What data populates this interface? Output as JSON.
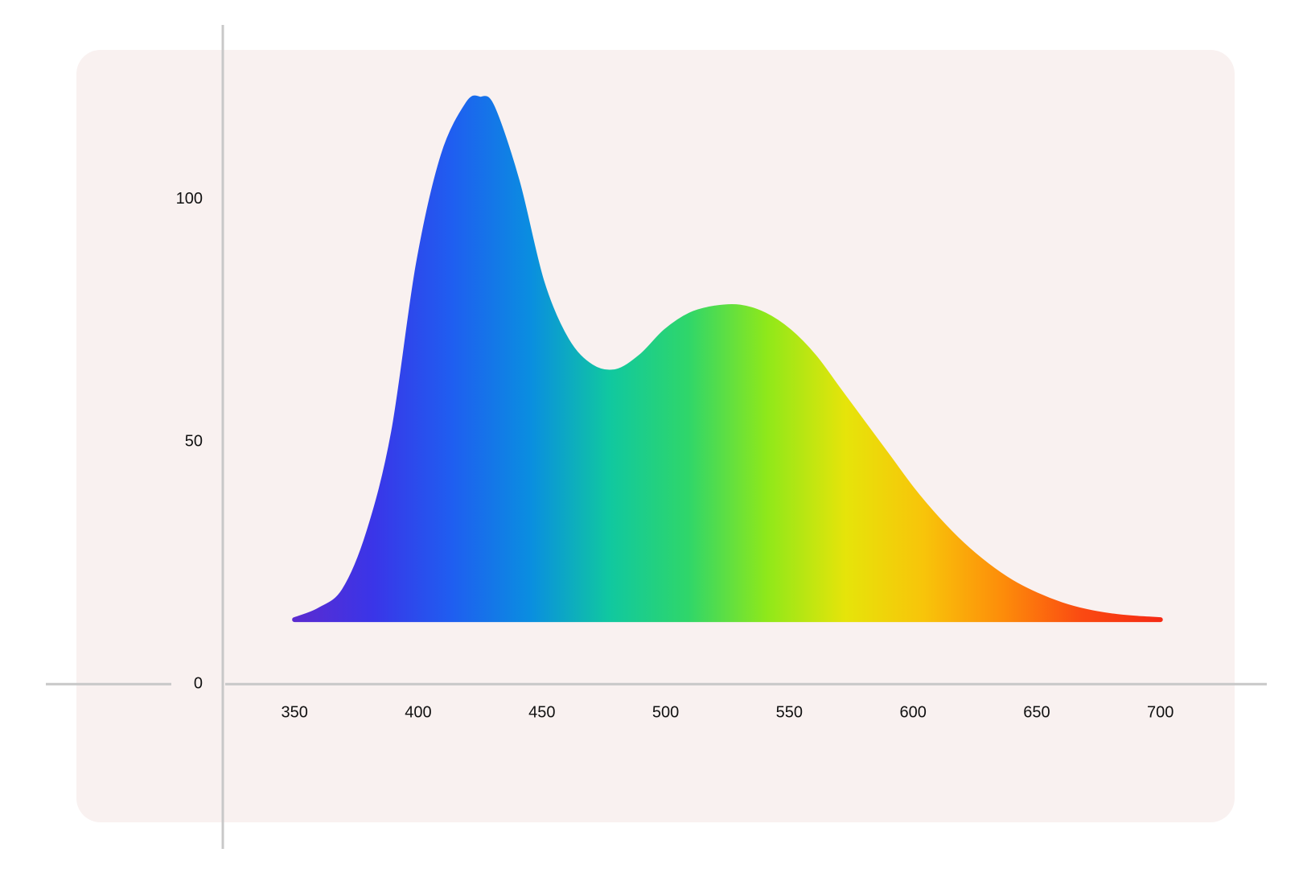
{
  "chart_data": {
    "type": "area",
    "x": [
      350,
      360,
      370,
      380,
      390,
      400,
      410,
      420,
      425,
      430,
      440,
      450,
      460,
      470,
      480,
      490,
      500,
      510,
      520,
      530,
      540,
      550,
      560,
      570,
      580,
      590,
      600,
      610,
      620,
      630,
      640,
      650,
      660,
      670,
      680,
      690,
      700
    ],
    "values": [
      13.3,
      15.3,
      19.3,
      31.4,
      52,
      86.6,
      109,
      119.7,
      120.7,
      119,
      103.8,
      83,
      71,
      65.5,
      64.5,
      67.6,
      72.8,
      76.2,
      77.6,
      77.8,
      76.2,
      72.8,
      67.6,
      60.7,
      53.8,
      46.9,
      40,
      34,
      28.8,
      24.5,
      21,
      18.4,
      16.4,
      15,
      14.1,
      13.6,
      13.3
    ],
    "gradient": [
      "#5b2bd0",
      "#3a35e8",
      "#1f5ef0",
      "#0a8ee0",
      "#10c8a0",
      "#2fd66a",
      "#8fe81a",
      "#e6e40a",
      "#f8c40a",
      "#fd8c0a",
      "#fa4a12",
      "#f52a14"
    ],
    "xlim": [
      321,
      743
    ],
    "xticks": [
      350,
      400,
      450,
      500,
      550,
      600,
      650,
      700
    ],
    "ylim": [
      -34,
      136
    ],
    "yticks": [
      0,
      50,
      100
    ],
    "grid": false
  }
}
